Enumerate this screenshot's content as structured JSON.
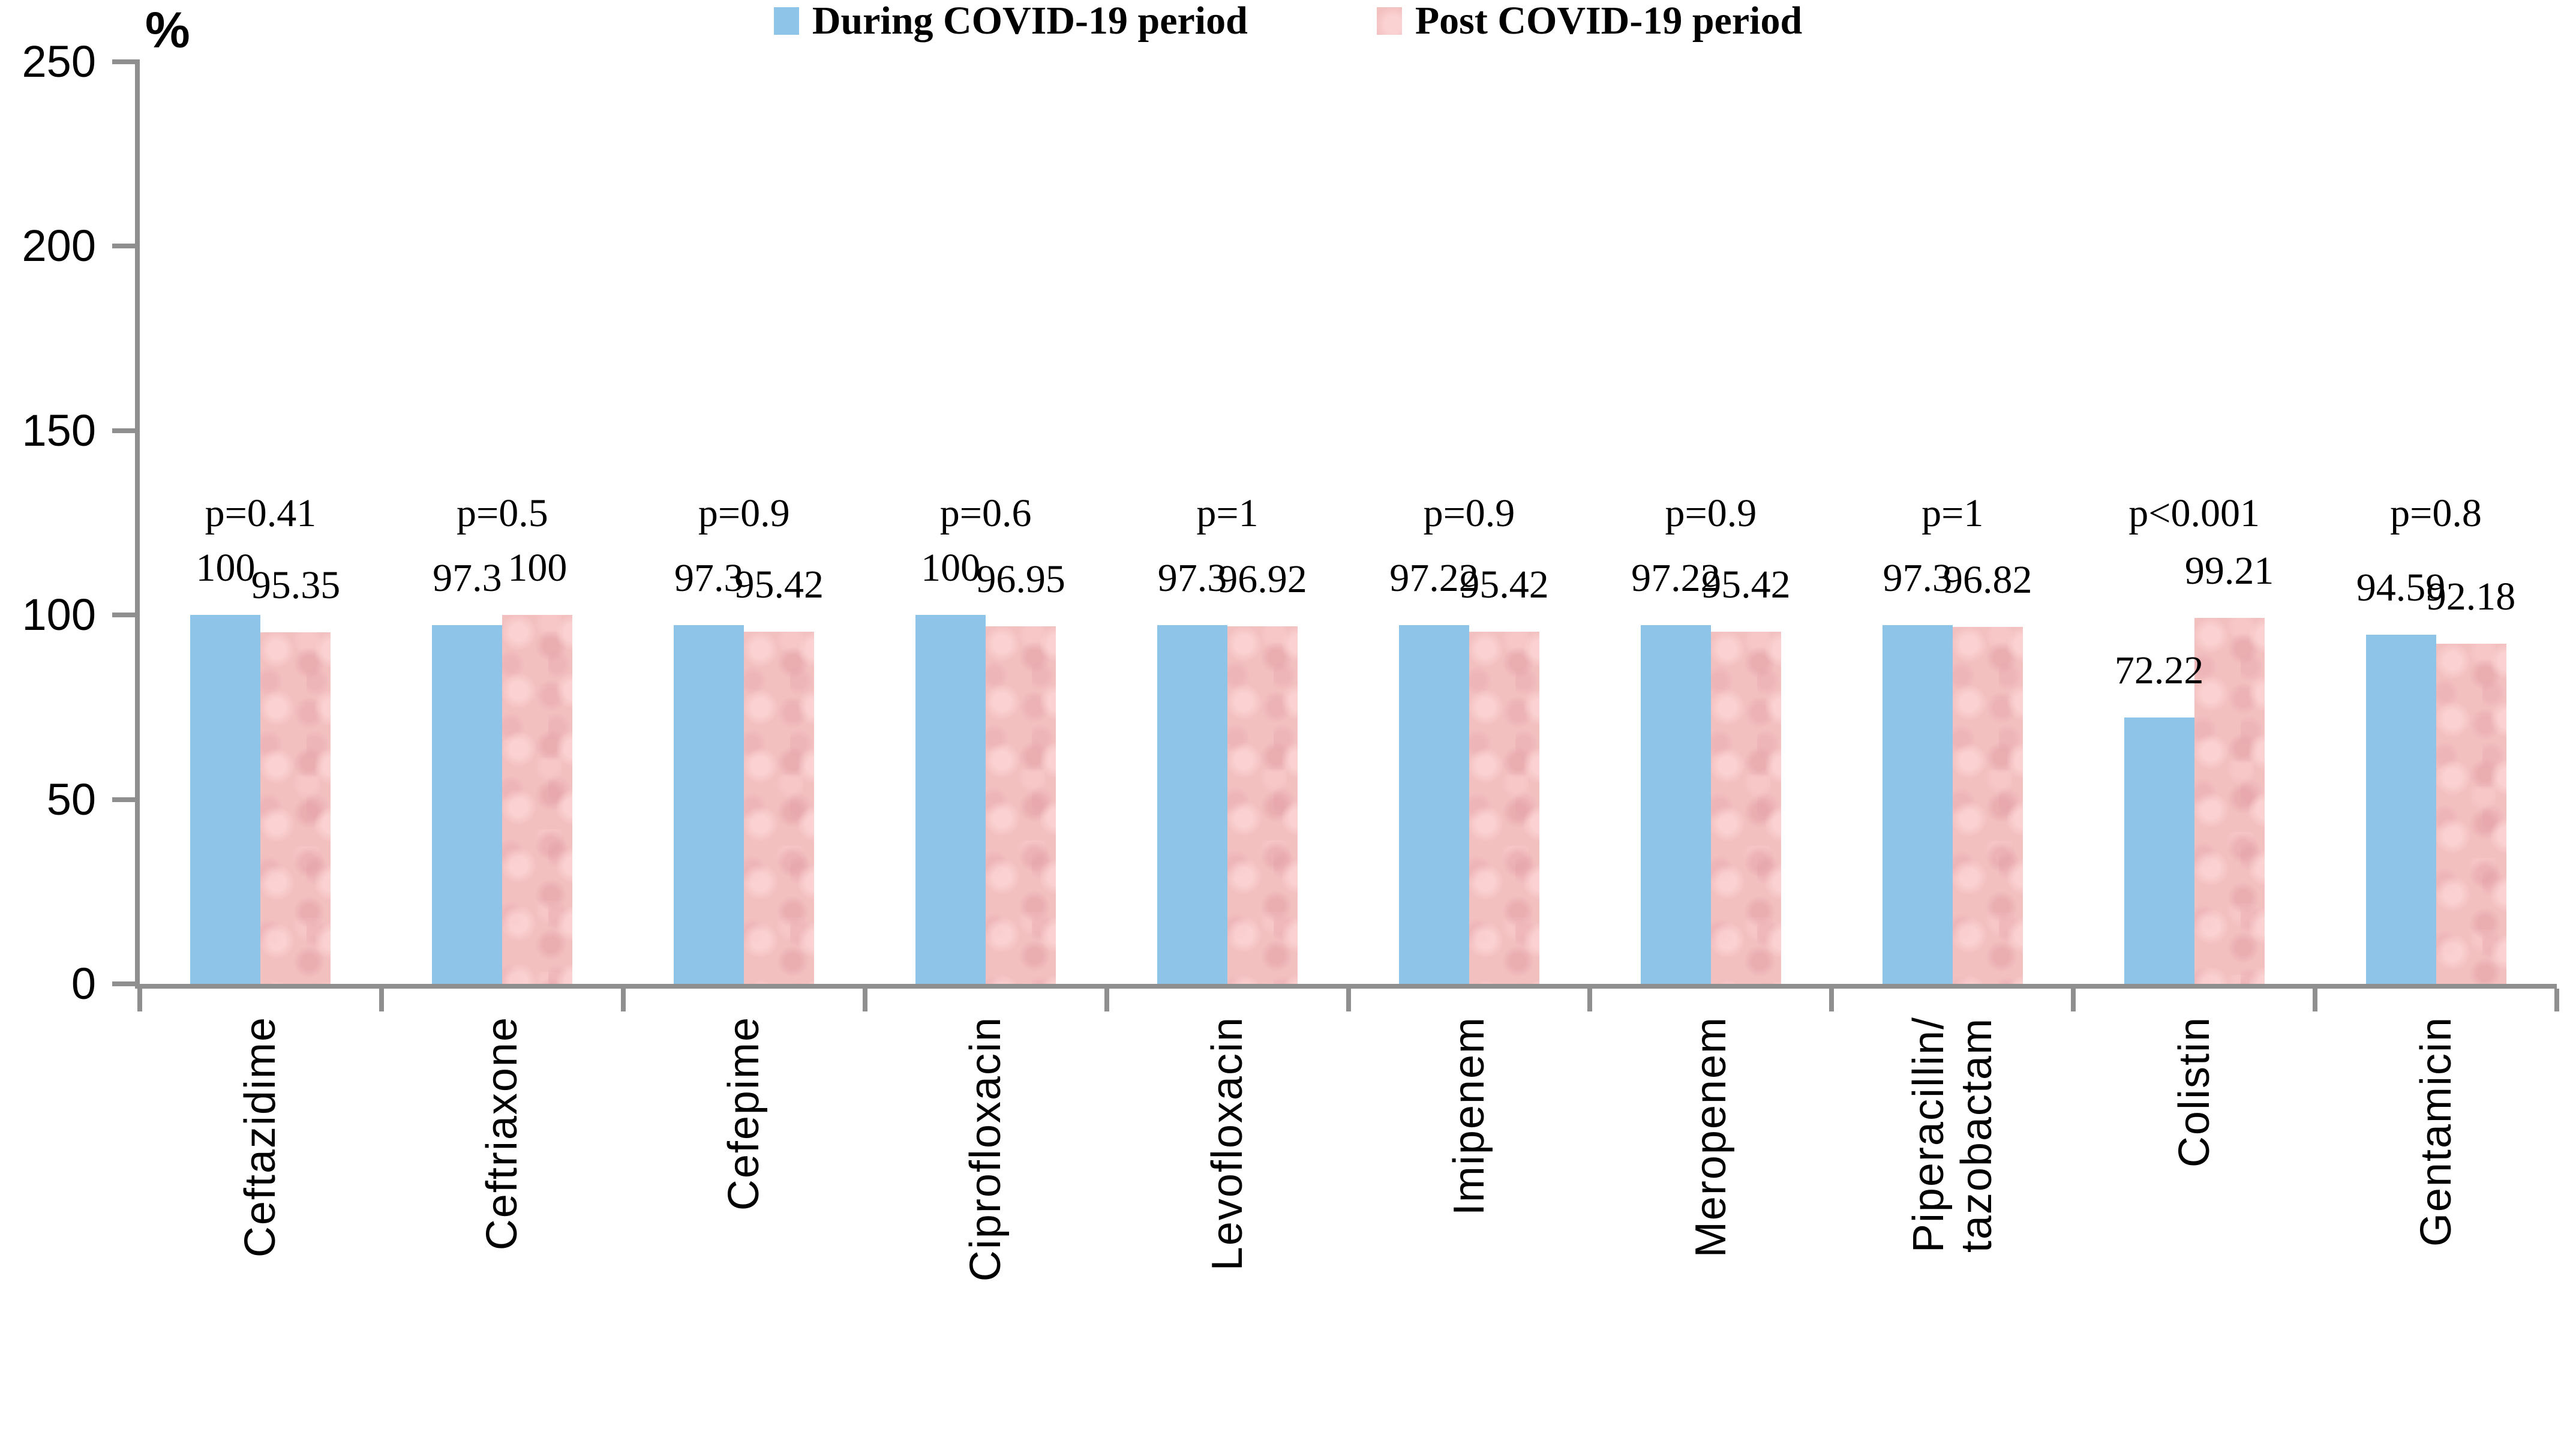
{
  "chart_data": {
    "type": "bar",
    "title": "",
    "ylabel": "%",
    "xlabel": "",
    "ylim": [
      0,
      250
    ],
    "yticks": [
      0,
      50,
      100,
      150,
      200,
      250
    ],
    "grid": false,
    "legend_position": "bottom",
    "categories": [
      "Ceftazidime",
      "Ceftriaxone",
      "Cefepime",
      "Ciprofloxacin",
      "Levofloxacin",
      "Imipenem",
      "Meropenem",
      "Piperacillin/\ntazobactam",
      "Colistin",
      "Gentamicin"
    ],
    "series": [
      {
        "name": "During COVID-19 period",
        "color": "#8ec4e8",
        "values": [
          100,
          97.3,
          97.3,
          100,
          97.3,
          97.22,
          97.22,
          97.3,
          72.22,
          94.59
        ]
      },
      {
        "name": "Post COVID-19 period",
        "color": "#f3c0c0",
        "values": [
          95.35,
          100,
          95.42,
          96.95,
          96.92,
          95.42,
          95.42,
          96.82,
          99.21,
          92.18
        ]
      }
    ],
    "p_value_annotations": [
      "p=0.41",
      "p=0.5",
      "p=0.9",
      "p=0.6",
      "p=1",
      "p=0.9",
      "p=0.9",
      "p=1",
      "p<0.001",
      "p=0.8"
    ],
    "axis_color": "#8f8f8f"
  }
}
